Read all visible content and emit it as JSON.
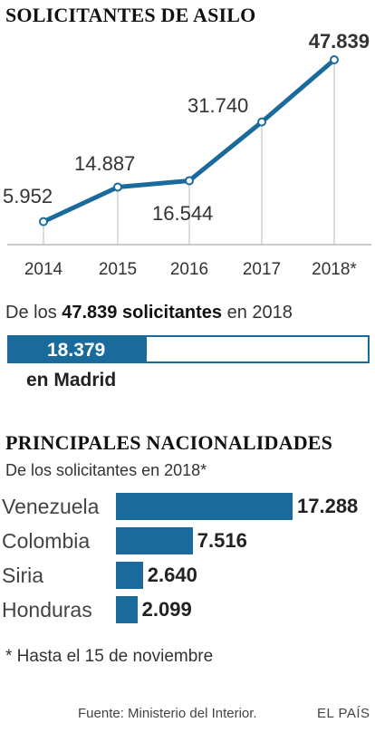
{
  "chart_data": [
    {
      "type": "line",
      "title": "SOLICITANTES DE ASILO",
      "categories": [
        "2014",
        "2015",
        "2016",
        "2017",
        "2018*"
      ],
      "series": [
        {
          "values": [
            5952,
            14887,
            16544,
            31740,
            47839
          ]
        }
      ],
      "value_labels": [
        "5.952",
        "14.887",
        "16.544",
        "31.740",
        "47.839"
      ],
      "ylim": [
        0,
        50000
      ],
      "grid": false,
      "color": "#1a6a9b"
    },
    {
      "type": "bar",
      "orientation": "horizontal",
      "subtitle": "De los 47.839 solicitantes en 2018",
      "subtitle_parts": {
        "pre": "De los ",
        "bold": "47.839 solicitantes",
        "post": " en 2018"
      },
      "total": 47839,
      "values": [
        18379
      ],
      "value_labels": [
        "18.379"
      ],
      "label": "en Madrid",
      "color": "#1a6a9b"
    },
    {
      "type": "bar",
      "orientation": "horizontal",
      "title": "PRINCIPALES NACIONALIDADES",
      "subtitle": "De los solicitantes en 2018*",
      "categories": [
        "Venezuela",
        "Colombia",
        "Siria",
        "Honduras"
      ],
      "values": [
        17288,
        7516,
        2640,
        2099
      ],
      "value_labels": [
        "17.288",
        "7.516",
        "2.640",
        "2.099"
      ],
      "color": "#1a6a9b"
    }
  ],
  "footnote": "* Hasta el 15 de noviembre",
  "source": "Fuente: Ministerio del Interior.",
  "brand": "EL PAÍS"
}
